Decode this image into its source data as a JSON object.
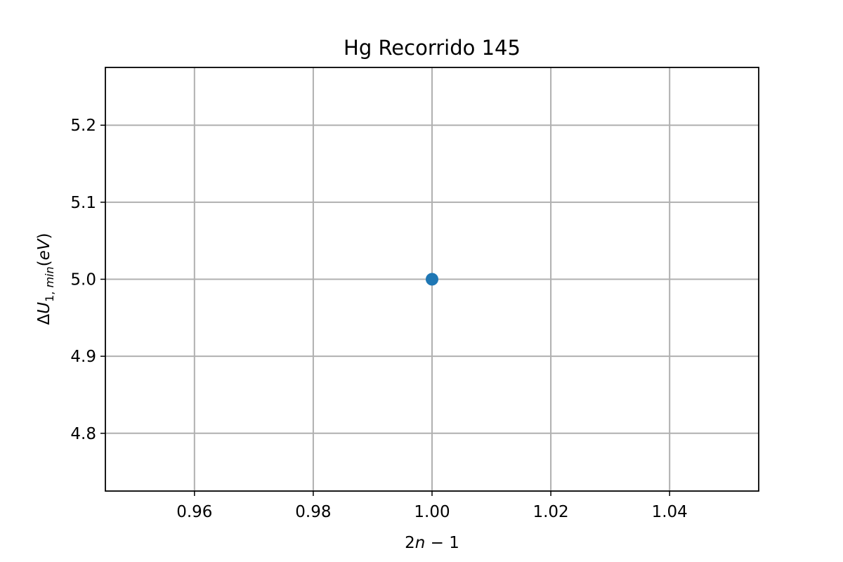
{
  "chart_data": {
    "type": "scatter",
    "title": "Hg Recorrido 145",
    "xlabel": {
      "main": "2",
      "var": "n",
      "rest": " − 1"
    },
    "ylabel": {
      "delta": "Δ",
      "var": "U",
      "sub": "1, ",
      "sub_it": "min",
      "rest": "(",
      "unit": "eV",
      "close": ")"
    },
    "xlim": [
      0.945,
      1.055
    ],
    "ylim": [
      4.725,
      5.275
    ],
    "xticks": [
      0.96,
      0.98,
      1.0,
      1.02,
      1.04
    ],
    "xtick_labels": [
      "0.96",
      "0.98",
      "1.00",
      "1.02",
      "1.04"
    ],
    "yticks": [
      4.8,
      4.9,
      5.0,
      5.1,
      5.2
    ],
    "ytick_labels": [
      "4.8",
      "4.9",
      "5.0",
      "5.1",
      "5.2"
    ],
    "grid": true,
    "series": [
      {
        "color": "#1f77b4",
        "points": [
          {
            "x": 1.0,
            "y": 5.0
          }
        ]
      }
    ]
  }
}
